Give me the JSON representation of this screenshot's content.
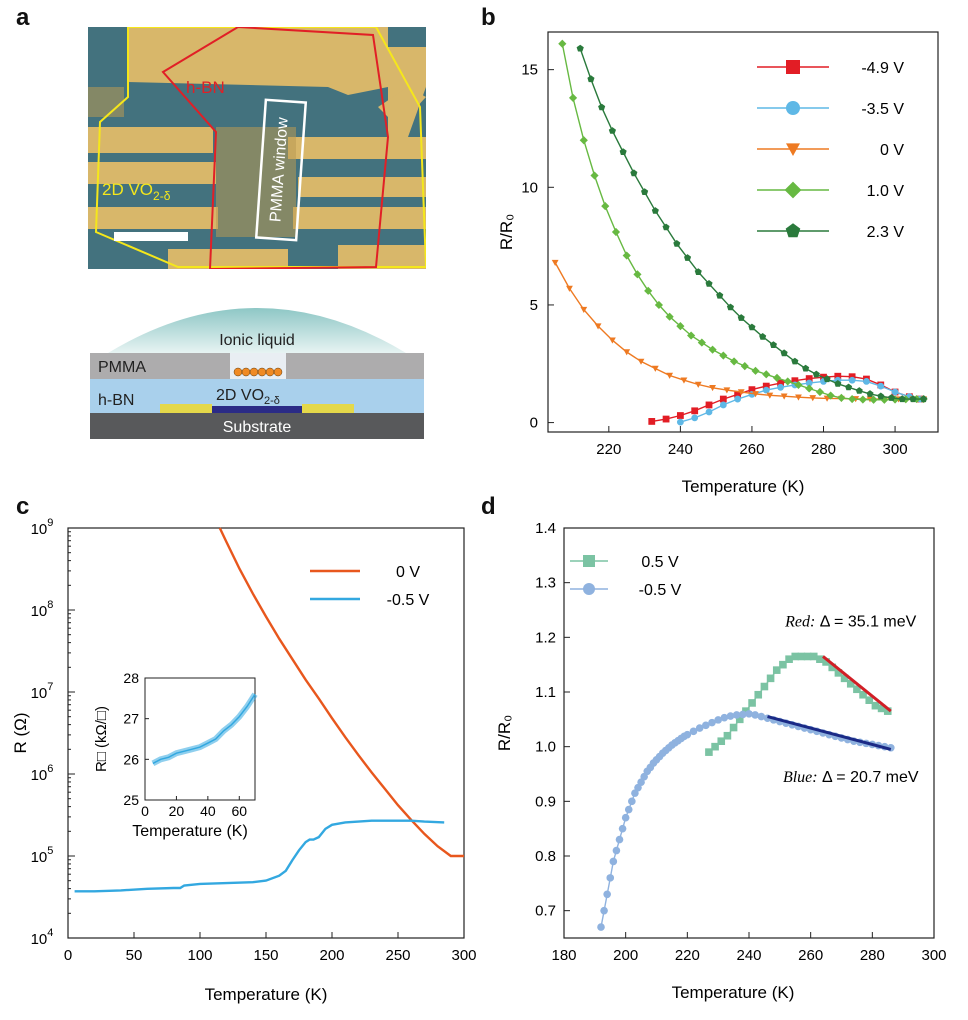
{
  "panels": {
    "a": "a",
    "b": "b",
    "c": "c",
    "d": "d"
  },
  "panel_a": {
    "micrograph": {
      "hbn_label": "h-BN",
      "vo2_label_base": "2D VO",
      "vo2_label_sub": "2-δ",
      "pmma_window_label": "PMMA window"
    },
    "schematic": {
      "ionic_liquid": "Ionic liquid",
      "pmma": "PMMA",
      "hbn": "h-BN",
      "vo2_base": "2D VO",
      "vo2_sub": "2-δ",
      "substrate": "Substrate"
    }
  },
  "chart_data": [
    {
      "panel": "b",
      "type": "line",
      "xlabel": "Temperature (K)",
      "ylabel": "R/R₀",
      "xlim": [
        203,
        312
      ],
      "ylim": [
        -0.4,
        16.6
      ],
      "xticks": [
        220,
        240,
        260,
        280,
        300
      ],
      "yticks": [
        0,
        5,
        10,
        15
      ],
      "legend_position": "top-right",
      "series": [
        {
          "name": "-4.9 V",
          "color": "#e21d25",
          "marker": "square",
          "x": [
            232,
            236,
            240,
            244,
            248,
            252,
            256,
            260,
            264,
            268,
            272,
            276,
            280,
            284,
            288,
            292,
            296,
            300,
            304,
            307
          ],
          "y": [
            0.05,
            0.15,
            0.3,
            0.5,
            0.75,
            1.0,
            1.2,
            1.4,
            1.55,
            1.68,
            1.78,
            1.87,
            1.93,
            1.97,
            1.95,
            1.85,
            1.6,
            1.3,
            1.1,
            1.0
          ]
        },
        {
          "name": "-3.5 V",
          "color": "#5fb8e6",
          "marker": "circle",
          "x": [
            240,
            244,
            248,
            252,
            256,
            260,
            264,
            268,
            272,
            276,
            280,
            284,
            288,
            292,
            296,
            300,
            304,
            307
          ],
          "y": [
            0.02,
            0.2,
            0.45,
            0.75,
            1.0,
            1.2,
            1.38,
            1.5,
            1.6,
            1.68,
            1.75,
            1.8,
            1.8,
            1.75,
            1.55,
            1.3,
            1.1,
            1.0
          ]
        },
        {
          "name": "0 V",
          "color": "#ee7a22",
          "marker": "triangle-down",
          "x": [
            205,
            209,
            213,
            217,
            221,
            225,
            229,
            233,
            237,
            241,
            245,
            249,
            253,
            257,
            261,
            265,
            269,
            273,
            277,
            281,
            285,
            289,
            293,
            297,
            301,
            305,
            308
          ],
          "y": [
            6.8,
            5.7,
            4.8,
            4.1,
            3.5,
            3.0,
            2.6,
            2.3,
            2.0,
            1.8,
            1.62,
            1.48,
            1.38,
            1.3,
            1.22,
            1.16,
            1.12,
            1.08,
            1.05,
            1.03,
            1.02,
            1.01,
            1.0,
            1.0,
            1.0,
            1.0,
            1.0
          ]
        },
        {
          "name": "1.0 V",
          "color": "#67b942",
          "marker": "diamond",
          "x": [
            207,
            210,
            213,
            216,
            219,
            222,
            225,
            228,
            231,
            234,
            237,
            240,
            243,
            246,
            249,
            252,
            255,
            258,
            261,
            264,
            267,
            270,
            273,
            276,
            279,
            282,
            285,
            288,
            291,
            294,
            297,
            300,
            303,
            306,
            308
          ],
          "y": [
            16.1,
            13.8,
            12.0,
            10.5,
            9.2,
            8.1,
            7.1,
            6.3,
            5.6,
            5.0,
            4.5,
            4.1,
            3.7,
            3.4,
            3.1,
            2.85,
            2.6,
            2.4,
            2.2,
            2.05,
            1.9,
            1.75,
            1.6,
            1.45,
            1.3,
            1.15,
            1.05,
            1.0,
            0.98,
            0.97,
            0.97,
            0.98,
            0.99,
            1.0,
            1.0
          ]
        },
        {
          "name": "2.3 V",
          "color": "#2a7a3c",
          "marker": "pentagon",
          "x": [
            212,
            215,
            218,
            221,
            224,
            227,
            230,
            233,
            236,
            239,
            242,
            245,
            248,
            251,
            254,
            257,
            260,
            263,
            266,
            269,
            272,
            275,
            278,
            281,
            284,
            287,
            290,
            293,
            296,
            299,
            302,
            305,
            308
          ],
          "y": [
            15.9,
            14.6,
            13.4,
            12.4,
            11.5,
            10.6,
            9.8,
            9.0,
            8.3,
            7.6,
            7.0,
            6.4,
            5.9,
            5.4,
            4.9,
            4.45,
            4.05,
            3.65,
            3.3,
            2.95,
            2.6,
            2.3,
            2.05,
            1.85,
            1.65,
            1.5,
            1.35,
            1.22,
            1.12,
            1.05,
            1.0,
            1.0,
            1.0
          ]
        }
      ]
    },
    {
      "panel": "c",
      "type": "line",
      "xlabel": "Temperature (K)",
      "ylabel": "R (Ω)",
      "xlim": [
        0,
        300
      ],
      "ylim_log10": [
        4,
        9
      ],
      "xticks": [
        0,
        50,
        100,
        150,
        200,
        250,
        300
      ],
      "ytick_base": "10",
      "ytick_exponents": [
        "4",
        "5",
        "6",
        "7",
        "8",
        "9"
      ],
      "legend_position": "top-right",
      "series": [
        {
          "name": "0 V",
          "color": "#e8571d",
          "x": [
            115,
            120,
            130,
            140,
            150,
            160,
            170,
            180,
            190,
            200,
            210,
            220,
            230,
            240,
            250,
            260,
            270,
            280,
            290,
            300
          ],
          "log10y": [
            9.0,
            8.83,
            8.5,
            8.2,
            7.92,
            7.65,
            7.4,
            7.15,
            6.92,
            6.68,
            6.45,
            6.23,
            6.02,
            5.82,
            5.62,
            5.44,
            5.27,
            5.12,
            5.0,
            5.0
          ]
        },
        {
          "name": "-0.5 V",
          "color": "#33a8e0",
          "x": [
            5,
            20,
            40,
            60,
            80,
            85,
            88,
            100,
            120,
            140,
            150,
            160,
            165,
            170,
            175,
            180,
            183,
            186,
            190,
            195,
            200,
            210,
            220,
            230,
            240,
            250,
            260,
            270,
            285
          ],
          "log10y": [
            4.57,
            4.57,
            4.58,
            4.6,
            4.61,
            4.61,
            4.64,
            4.66,
            4.67,
            4.68,
            4.7,
            4.76,
            4.82,
            4.95,
            5.07,
            5.17,
            5.2,
            5.2,
            5.23,
            5.33,
            5.38,
            5.41,
            5.42,
            5.43,
            5.43,
            5.43,
            5.43,
            5.42,
            5.41
          ]
        }
      ],
      "inset": {
        "xlabel": "Temperature (K)",
        "ylabel": "R□ (kΩ/□)",
        "xlim": [
          0,
          70
        ],
        "ylim": [
          25,
          28
        ],
        "xticks": [
          0,
          20,
          40,
          60
        ],
        "yticks": [
          25,
          26,
          27,
          28
        ],
        "series": [
          {
            "color": "#33a8e0",
            "x": [
              5,
              10,
              15,
              20,
              25,
              30,
              35,
              40,
              45,
              50,
              55,
              60,
              65,
              70
            ],
            "y": [
              25.9,
              26.0,
              26.05,
              26.15,
              26.2,
              26.25,
              26.3,
              26.4,
              26.5,
              26.7,
              26.85,
              27.05,
              27.3,
              27.6
            ]
          }
        ]
      }
    },
    {
      "panel": "d",
      "type": "scatter",
      "xlabel": "Temperature (K)",
      "ylabel": "R/R₀",
      "xlim": [
        180,
        300
      ],
      "ylim": [
        0.65,
        1.4
      ],
      "xticks": [
        180,
        200,
        220,
        240,
        260,
        280,
        300
      ],
      "yticks": [
        0.7,
        0.8,
        0.9,
        1.0,
        1.1,
        1.2,
        1.3,
        1.4
      ],
      "legend_position": "top-left",
      "series": [
        {
          "name": "0.5 V",
          "color": "#7bc3a3",
          "marker": "square",
          "x": [
            227,
            229,
            231,
            233,
            235,
            237,
            239,
            241,
            243,
            245,
            247,
            249,
            251,
            253,
            255,
            257,
            259,
            261,
            263,
            265,
            267,
            269,
            271,
            273,
            275,
            277,
            279,
            281,
            283,
            285
          ],
          "y": [
            0.99,
            1.0,
            1.01,
            1.02,
            1.035,
            1.05,
            1.065,
            1.08,
            1.095,
            1.11,
            1.125,
            1.14,
            1.15,
            1.16,
            1.165,
            1.165,
            1.165,
            1.165,
            1.16,
            1.155,
            1.145,
            1.135,
            1.125,
            1.115,
            1.105,
            1.095,
            1.085,
            1.075,
            1.07,
            1.065
          ]
        },
        {
          "name": "-0.5 V",
          "color": "#8fb2df",
          "marker": "circle",
          "x": [
            192,
            193,
            194,
            195,
            196,
            197,
            198,
            199,
            200,
            201,
            202,
            203,
            204,
            205,
            206,
            207,
            208,
            209,
            210,
            211,
            212,
            213,
            214,
            215,
            216,
            217,
            218,
            219,
            220,
            222,
            224,
            226,
            228,
            230,
            232,
            234,
            236,
            238,
            240,
            242,
            244,
            246,
            248,
            250,
            252,
            254,
            256,
            258,
            260,
            262,
            264,
            266,
            268,
            270,
            272,
            274,
            276,
            278,
            280,
            282,
            284,
            286
          ],
          "y": [
            0.67,
            0.7,
            0.73,
            0.76,
            0.79,
            0.81,
            0.83,
            0.85,
            0.87,
            0.885,
            0.9,
            0.915,
            0.925,
            0.935,
            0.945,
            0.955,
            0.962,
            0.97,
            0.976,
            0.982,
            0.988,
            0.993,
            0.998,
            1.003,
            1.007,
            1.011,
            1.015,
            1.019,
            1.022,
            1.028,
            1.034,
            1.039,
            1.044,
            1.049,
            1.053,
            1.056,
            1.058,
            1.059,
            1.06,
            1.058,
            1.055,
            1.052,
            1.049,
            1.046,
            1.043,
            1.04,
            1.037,
            1.034,
            1.031,
            1.028,
            1.025,
            1.022,
            1.019,
            1.016,
            1.013,
            1.01,
            1.008,
            1.006,
            1.004,
            1.002,
            1.0,
            0.998
          ]
        }
      ],
      "fits": [
        {
          "color": "#d11f26",
          "x": [
            264,
            286
          ],
          "y": [
            1.165,
            1.065
          ]
        },
        {
          "color": "#1b2a86",
          "x": [
            246,
            286
          ],
          "y": [
            1.055,
            0.995
          ]
        }
      ],
      "annotations": [
        {
          "prefix": "Red:",
          "text": " Δ = 35.1 meV",
          "x": 273,
          "y": 1.22
        },
        {
          "prefix": "Blue:",
          "text": " Δ = 20.7 meV",
          "x": 273,
          "y": 0.935
        }
      ]
    }
  ]
}
